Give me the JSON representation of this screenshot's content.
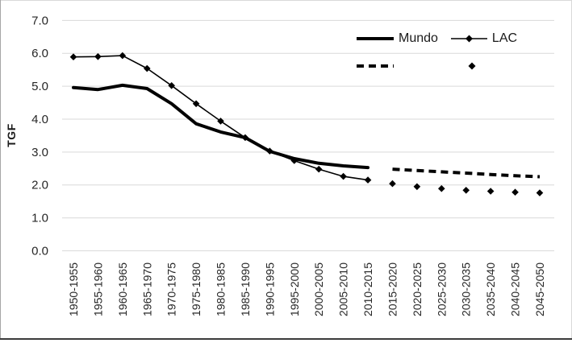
{
  "chart_data": {
    "type": "line",
    "title": "",
    "xlabel": "",
    "ylabel": "TGF",
    "ylim": [
      0,
      7
    ],
    "y_tick_labels": [
      "0.0",
      "1.0",
      "2.0",
      "3.0",
      "4.0",
      "5.0",
      "6.0",
      "7.0"
    ],
    "grid": true,
    "legend_position": "top-right-inside",
    "categories": [
      "1950-1955",
      "1955-1960",
      "1960-1965",
      "1965-1970",
      "1970-1975",
      "1975-1980",
      "1980-1985",
      "1985-1990",
      "1990-1995",
      "1995-2000",
      "2000-2005",
      "2005-2010",
      "2010-2015",
      "2015-2020",
      "2020-2025",
      "2025-2030",
      "2030-2035",
      "2035-2040",
      "2040-2045",
      "2045-2050"
    ],
    "series": [
      {
        "name": "Mundo",
        "segment": "observed",
        "line": "solid",
        "width": "thick",
        "marker": "none",
        "values": [
          4.96,
          4.9,
          5.03,
          4.93,
          4.47,
          3.86,
          3.61,
          3.44,
          3.02,
          2.8,
          2.66,
          2.58,
          2.53,
          null,
          null,
          null,
          null,
          null,
          null,
          null
        ]
      },
      {
        "name": "LAC",
        "segment": "observed",
        "line": "solid",
        "width": "thin",
        "marker": "diamond",
        "values": [
          5.89,
          5.9,
          5.93,
          5.54,
          5.02,
          4.47,
          3.94,
          3.44,
          3.03,
          2.74,
          2.48,
          2.26,
          2.15,
          null,
          null,
          null,
          null,
          null,
          null,
          null
        ]
      },
      {
        "name": "Mundo",
        "segment": "projection",
        "line": "dashed",
        "width": "thick",
        "marker": "none",
        "values": [
          null,
          null,
          null,
          null,
          null,
          null,
          null,
          null,
          null,
          null,
          null,
          null,
          null,
          2.48,
          2.44,
          2.4,
          2.36,
          2.32,
          2.28,
          2.25
        ]
      },
      {
        "name": "LAC",
        "segment": "projection",
        "line": "none",
        "width": "none",
        "marker": "diamond",
        "values": [
          null,
          null,
          null,
          null,
          null,
          null,
          null,
          null,
          null,
          null,
          null,
          null,
          null,
          2.04,
          1.95,
          1.89,
          1.84,
          1.81,
          1.78,
          1.76
        ]
      }
    ]
  },
  "legend": {
    "mundo_label": "Mundo",
    "lac_label": "LAC"
  },
  "colors": {
    "series": "#000000",
    "gridline": "#d9d9d9",
    "axis_text": "#262626"
  }
}
